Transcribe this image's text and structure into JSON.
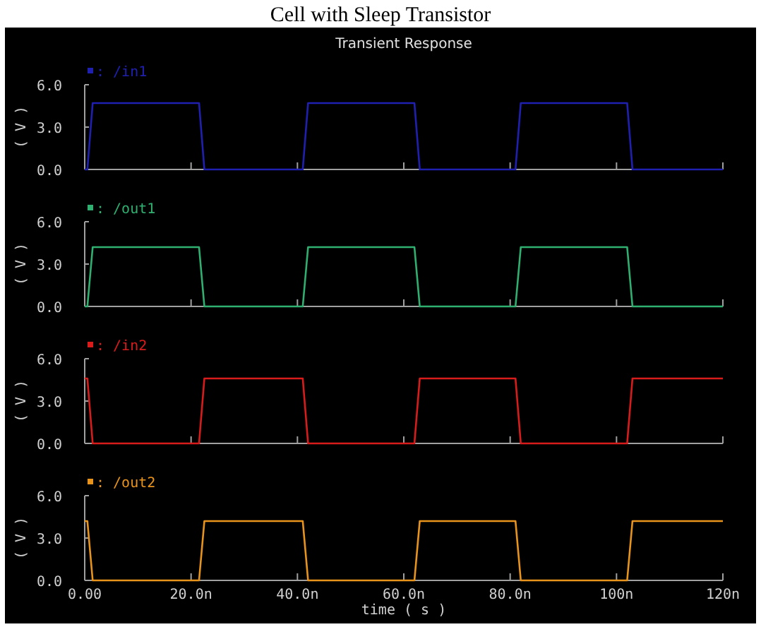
{
  "chart_data": [
    {
      "type": "line",
      "title": "Transient Response",
      "annotations": [
        "Cell with Sleep Transistor"
      ],
      "ylabel": "( V )",
      "tick_labels": "y",
      "xlim": [
        0,
        120
      ],
      "xticks": [
        {
          "value": 0,
          "label": null
        },
        {
          "value": 20,
          "label": null
        },
        {
          "value": 40,
          "label": null
        },
        {
          "value": 60,
          "label": null
        },
        {
          "value": 80,
          "label": null
        },
        {
          "value": 100,
          "label": null
        },
        {
          "value": 120,
          "label": null
        }
      ],
      "ylim": [
        0,
        6
      ],
      "yticks": [
        {
          "value": 0,
          "label": "0.0"
        },
        {
          "value": 3,
          "label": "3.0"
        },
        {
          "value": 6,
          "label": "6.0"
        }
      ],
      "series": [
        {
          "name": ": /in1",
          "color": "#2020b0",
          "x": [
            0,
            0.5,
            1.5,
            21.5,
            22.5,
            41,
            42,
            62,
            63,
            81,
            82,
            102,
            103,
            120
          ],
          "values": [
            0,
            0,
            4.7,
            4.7,
            0,
            0,
            4.7,
            4.7,
            0,
            0,
            4.7,
            4.7,
            0,
            0
          ]
        }
      ]
    },
    {
      "type": "line",
      "ylabel": "( V )",
      "tick_labels": "y",
      "xlim": [
        0,
        120
      ],
      "xticks": [
        {
          "value": 0,
          "label": null
        },
        {
          "value": 20,
          "label": null
        },
        {
          "value": 40,
          "label": null
        },
        {
          "value": 60,
          "label": null
        },
        {
          "value": 80,
          "label": null
        },
        {
          "value": 100,
          "label": null
        },
        {
          "value": 120,
          "label": null
        }
      ],
      "ylim": [
        0,
        6
      ],
      "yticks": [
        {
          "value": 0,
          "label": "0.0"
        },
        {
          "value": 3,
          "label": "3.0"
        },
        {
          "value": 6,
          "label": "6.0"
        }
      ],
      "series": [
        {
          "name": ": /out1",
          "color": "#30b070",
          "x": [
            0,
            0.5,
            1.5,
            21.5,
            22.5,
            41,
            42,
            62,
            63,
            81,
            82,
            102,
            103,
            120
          ],
          "values": [
            0,
            0,
            4.2,
            4.2,
            0,
            0,
            4.2,
            4.2,
            0,
            0,
            4.2,
            4.2,
            0,
            0
          ]
        }
      ]
    },
    {
      "type": "line",
      "ylabel": "( V )",
      "tick_labels": "y",
      "xlim": [
        0,
        120
      ],
      "xticks": [
        {
          "value": 0,
          "label": null
        },
        {
          "value": 20,
          "label": null
        },
        {
          "value": 40,
          "label": null
        },
        {
          "value": 60,
          "label": null
        },
        {
          "value": 80,
          "label": null
        },
        {
          "value": 100,
          "label": null
        },
        {
          "value": 120,
          "label": null
        }
      ],
      "ylim": [
        0,
        6
      ],
      "yticks": [
        {
          "value": 0,
          "label": "0.0"
        },
        {
          "value": 3,
          "label": "3.0"
        },
        {
          "value": 6,
          "label": "6.0"
        }
      ],
      "series": [
        {
          "name": ": /in2",
          "color": "#d81c1c",
          "x": [
            0,
            0.5,
            1.5,
            21.5,
            22.5,
            41,
            42,
            62,
            63,
            81,
            82,
            102,
            103,
            120
          ],
          "values": [
            4.6,
            4.6,
            0,
            0,
            4.6,
            4.6,
            0,
            0,
            4.6,
            4.6,
            0,
            0,
            4.6,
            4.6
          ]
        }
      ]
    },
    {
      "type": "line",
      "xlabel": "time ( s )",
      "ylabel": "( V )",
      "xlim": [
        0,
        120
      ],
      "xticks": [
        {
          "value": 0,
          "label": "0.00"
        },
        {
          "value": 20,
          "label": "20.0n"
        },
        {
          "value": 40,
          "label": "40.0n"
        },
        {
          "value": 60,
          "label": "60.0n"
        },
        {
          "value": 80,
          "label": "80.0n"
        },
        {
          "value": 100,
          "label": "100n"
        },
        {
          "value": 120,
          "label": "120n"
        }
      ],
      "ylim": [
        0,
        6
      ],
      "yticks": [
        {
          "value": 0,
          "label": "0.0"
        },
        {
          "value": 3,
          "label": "3.0"
        },
        {
          "value": 6,
          "label": "6.0"
        }
      ],
      "series": [
        {
          "name": ": /out2",
          "color": "#e8941c",
          "x": [
            0,
            0.5,
            1.5,
            21.5,
            22.5,
            41,
            42,
            62,
            63,
            81,
            82,
            102,
            103,
            120
          ],
          "values": [
            4.2,
            4.2,
            0,
            0,
            4.2,
            4.2,
            0,
            0,
            4.2,
            4.2,
            0,
            0,
            4.2,
            4.2
          ]
        }
      ]
    }
  ]
}
